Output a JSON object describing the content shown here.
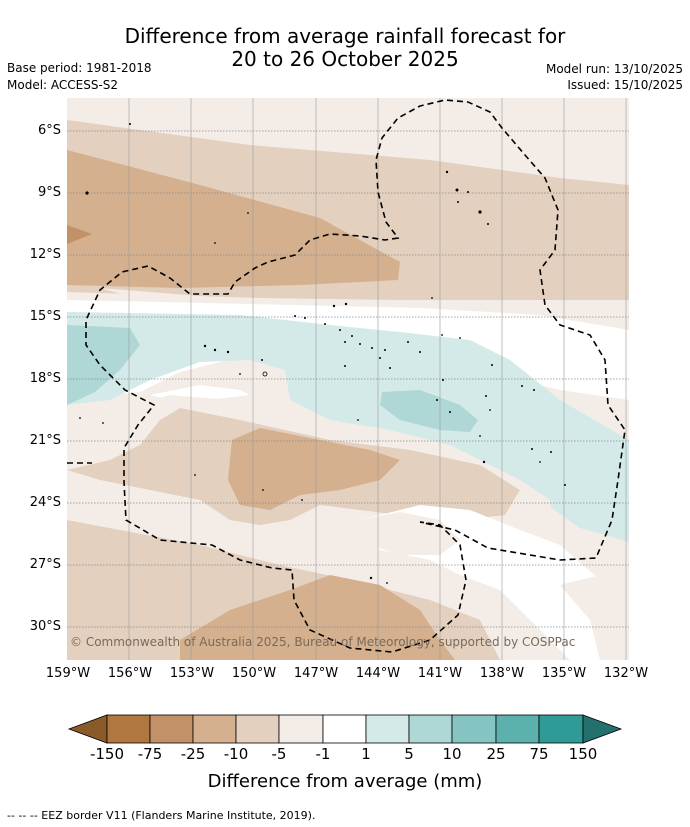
{
  "title": {
    "line1": "Difference from average rainfall forecast for",
    "line2": "20 to 26 October 2025"
  },
  "info": {
    "base_period": "Base period: 1981-2018",
    "model": "Model: ACCESS-S2",
    "model_run": "Model run: 13/10/2025",
    "issued": "Issued: 15/10/2025"
  },
  "map": {
    "lat_ticks": [
      "6°S",
      "9°S",
      "12°S",
      "15°S",
      "18°S",
      "21°S",
      "24°S",
      "27°S",
      "30°S"
    ],
    "lon_ticks": [
      "159°W",
      "156°W",
      "153°W",
      "150°W",
      "147°W",
      "144°W",
      "141°W",
      "138°W",
      "135°W",
      "132°W"
    ],
    "copyright": "© Commonwealth of Australia 2025, Bureau of Meteorology, supported by COSPPac"
  },
  "colorbar": {
    "labels": [
      "-150",
      "-75",
      "-25",
      "-10",
      "-5",
      "-1",
      "1",
      "5",
      "10",
      "25",
      "75",
      "150"
    ],
    "colors": [
      "#8b5a2b",
      "#b07840",
      "#c29168",
      "#d4b08e",
      "#e3d0bf",
      "#f4ede7",
      "#ffffff",
      "#d4eae8",
      "#aed7d6",
      "#86c4c2",
      "#5cb0ae",
      "#2f9a96",
      "#23706d"
    ],
    "title": "Difference from average (mm)"
  },
  "legend": {
    "eez": "--  --  -- EEZ border V11 (Flanders Marine Institute, 2019)."
  }
}
